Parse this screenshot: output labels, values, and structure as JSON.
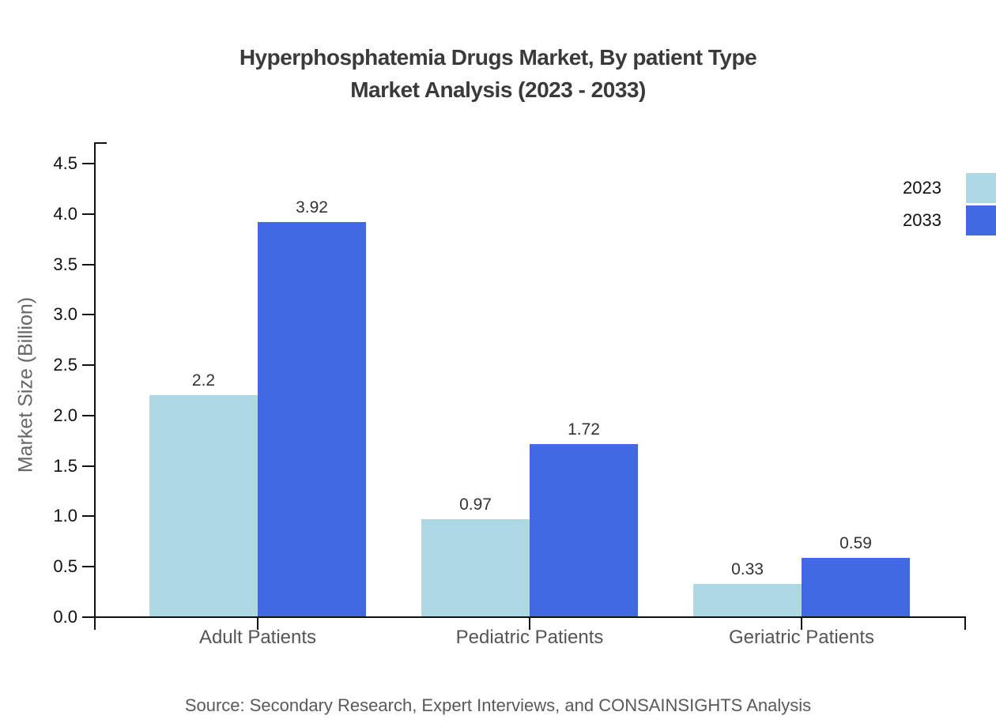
{
  "title": {
    "line1": "Hyperphosphatemia Drugs Market, By patient Type",
    "line2": "Market Analysis (2023 - 2033)"
  },
  "chart_data": {
    "type": "bar",
    "categories": [
      "Adult Patients",
      "Pediatric Patients",
      "Geriatric Patients"
    ],
    "series": [
      {
        "name": "2023",
        "color": "#ADD8E6",
        "values": [
          2.2,
          0.97,
          0.33
        ]
      },
      {
        "name": "2033",
        "color": "#4169E1",
        "values": [
          3.92,
          1.72,
          0.59
        ]
      }
    ],
    "value_labels": [
      [
        "2.2",
        "0.97",
        "0.33"
      ],
      [
        "3.92",
        "1.72",
        "0.59"
      ]
    ],
    "title": "Hyperphosphatemia Drugs Market, By patient Type Market Analysis (2023 - 2033)",
    "xlabel": "",
    "ylabel": "Market Size (Billion)",
    "ylim": [
      0,
      4.5
    ],
    "ytick_step": 0.5,
    "yticks": [
      "0.0",
      "0.5",
      "1.0",
      "1.5",
      "2.0",
      "2.5",
      "3.0",
      "3.5",
      "4.0",
      "4.5"
    ],
    "grid": false,
    "legend_position": "top-right"
  },
  "source": "Source: Secondary Research, Expert Interviews, and CONSAINSIGHTS Analysis",
  "colors": {
    "series_2023": "#ADD8E6",
    "series_2033": "#4169E1",
    "axis": "#111111",
    "tick_label": "#111111",
    "category_label": "#555555",
    "value_label": "#333333",
    "y_axis_title": "#666666",
    "title": "#3a3a3a",
    "source": "#595959",
    "background": "#ffffff"
  }
}
